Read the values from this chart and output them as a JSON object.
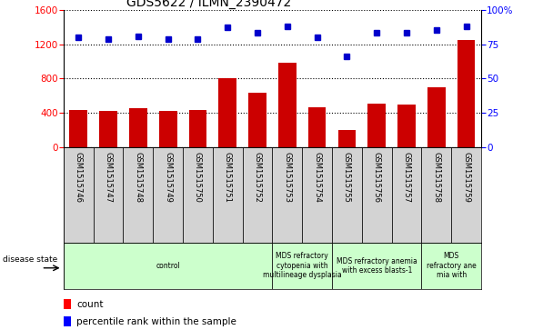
{
  "title": "GDS5622 / ILMN_2390472",
  "samples": [
    "GSM1515746",
    "GSM1515747",
    "GSM1515748",
    "GSM1515749",
    "GSM1515750",
    "GSM1515751",
    "GSM1515752",
    "GSM1515753",
    "GSM1515754",
    "GSM1515755",
    "GSM1515756",
    "GSM1515757",
    "GSM1515758",
    "GSM1515759"
  ],
  "counts": [
    430,
    425,
    450,
    425,
    430,
    800,
    630,
    980,
    460,
    200,
    510,
    490,
    700,
    1250
  ],
  "percentile_ranks": [
    80,
    79,
    81,
    79,
    79,
    87,
    83,
    88,
    80,
    66,
    83,
    83,
    85,
    88
  ],
  "bar_color": "#cc0000",
  "dot_color": "#0000cc",
  "ylim_left": [
    0,
    1600
  ],
  "ylim_right": [
    0,
    100
  ],
  "yticks_left": [
    0,
    400,
    800,
    1200,
    1600
  ],
  "yticks_right": [
    0,
    25,
    50,
    75,
    100
  ],
  "ytick_labels_right": [
    "0",
    "25",
    "50",
    "75",
    "100%"
  ],
  "disease_groups": [
    {
      "label": "control",
      "start": 0,
      "end": 7
    },
    {
      "label": "MDS refractory\ncytopenia with\nmultilineage dysplasia",
      "start": 7,
      "end": 9
    },
    {
      "label": "MDS refractory anemia\nwith excess blasts-1",
      "start": 9,
      "end": 12
    },
    {
      "label": "MDS\nrefractory ane\nmia with",
      "start": 12,
      "end": 14
    }
  ],
  "disease_state_label": "disease state",
  "legend_count_label": "count",
  "legend_pct_label": "percentile rank within the sample"
}
